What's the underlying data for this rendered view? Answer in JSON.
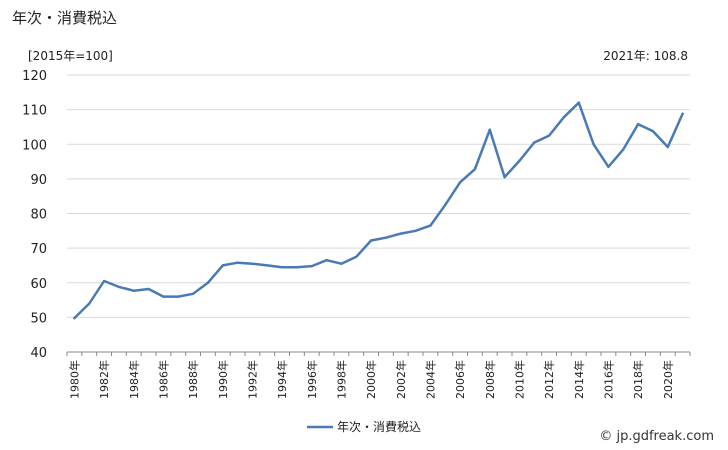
{
  "title": "年次・消費税込",
  "unit_label": "[2015年=100]",
  "latest_label": "2021年: 108.8",
  "credit": "© jp.gdfreak.com",
  "colors": {
    "line": "#4a7ab5",
    "grid": "#d9d9d9",
    "axis": "#888888"
  },
  "chart_data": {
    "type": "line",
    "ylim": [
      40,
      120
    ],
    "yticks": [
      40,
      50,
      60,
      70,
      80,
      90,
      100,
      110,
      120
    ],
    "grid": true,
    "legend_position": "bottom",
    "x": [
      1980,
      1981,
      1982,
      1983,
      1984,
      1985,
      1986,
      1987,
      1988,
      1989,
      1990,
      1991,
      1992,
      1993,
      1994,
      1995,
      1996,
      1997,
      1998,
      1999,
      2000,
      2001,
      2002,
      2003,
      2004,
      2005,
      2006,
      2007,
      2008,
      2009,
      2010,
      2011,
      2012,
      2013,
      2014,
      2015,
      2016,
      2017,
      2018,
      2019,
      2020,
      2021
    ],
    "x_tick_labels": [
      "1980年",
      "1982年",
      "1984年",
      "1986年",
      "1988年",
      "1990年",
      "1992年",
      "1994年",
      "1996年",
      "1998年",
      "2000年",
      "2002年",
      "2004年",
      "2006年",
      "2008年",
      "2010年",
      "2012年",
      "2014年",
      "2016年",
      "2018年",
      "2020年"
    ],
    "series": [
      {
        "name": "年次・消費税込",
        "values": [
          49.8,
          54.0,
          60.5,
          58.8,
          57.7,
          58.2,
          56.0,
          56.0,
          56.8,
          60.0,
          65.0,
          65.8,
          65.5,
          65.0,
          64.5,
          64.5,
          64.8,
          66.5,
          65.5,
          67.5,
          72.2,
          73.0,
          74.2,
          75.0,
          76.5,
          82.5,
          89.0,
          92.8,
          104.2,
          90.5,
          95.2,
          100.5,
          102.5,
          107.8,
          112.0,
          100.0,
          93.5,
          98.5,
          105.8,
          103.8,
          99.2,
          108.8
        ]
      }
    ]
  }
}
